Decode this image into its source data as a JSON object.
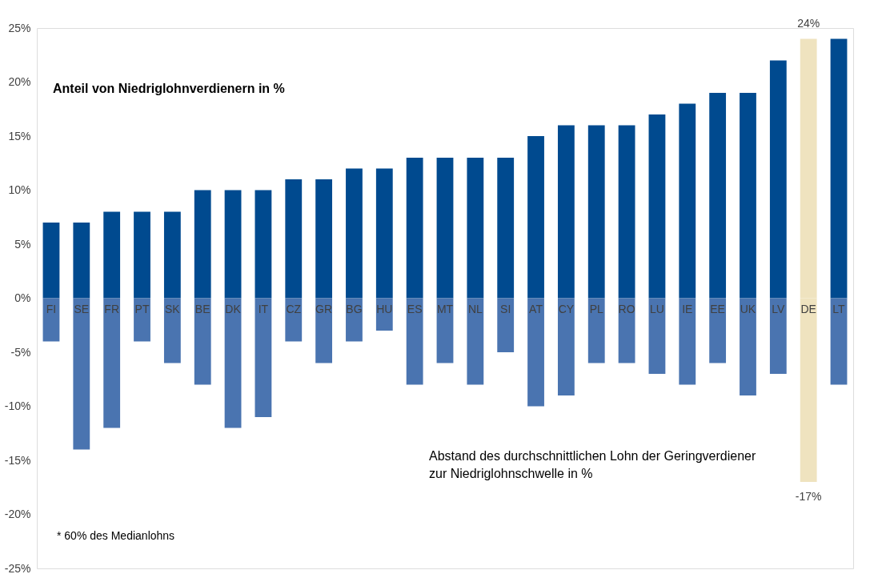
{
  "chart_data": {
    "type": "bar",
    "categories": [
      "FI",
      "SE",
      "FR",
      "PT",
      "SK",
      "BE",
      "DK",
      "IT",
      "CZ",
      "GR",
      "BG",
      "HU",
      "ES",
      "MT",
      "NL",
      "SI",
      "AT",
      "CY",
      "PL",
      "RO",
      "LU",
      "IE",
      "EE",
      "UK",
      "LV",
      "DE",
      "LT"
    ],
    "series": [
      {
        "colors": [
          "#004a8f",
          "#004a8f",
          "#004a8f",
          "#004a8f",
          "#004a8f",
          "#004a8f",
          "#004a8f",
          "#004a8f",
          "#004a8f",
          "#004a8f",
          "#004a8f",
          "#004a8f",
          "#004a8f",
          "#004a8f",
          "#004a8f",
          "#004a8f",
          "#004a8f",
          "#004a8f",
          "#004a8f",
          "#004a8f",
          "#004a8f",
          "#004a8f",
          "#004a8f",
          "#004a8f",
          "#004a8f",
          "#efe3bf",
          "#004a8f"
        ],
        "values": [
          7,
          7,
          8,
          8,
          8,
          10,
          10,
          10,
          11,
          11,
          12,
          12,
          13,
          13,
          13,
          13,
          15,
          16,
          16,
          16,
          17,
          18,
          19,
          19,
          22,
          24,
          24
        ],
        "value_labels": [
          null,
          null,
          null,
          null,
          null,
          null,
          null,
          null,
          null,
          null,
          null,
          null,
          null,
          null,
          null,
          null,
          null,
          null,
          null,
          null,
          null,
          null,
          null,
          null,
          null,
          "24%",
          null
        ]
      },
      {
        "colors": [
          "#4a74b0",
          "#4a74b0",
          "#4a74b0",
          "#4a74b0",
          "#4a74b0",
          "#4a74b0",
          "#4a74b0",
          "#4a74b0",
          "#4a74b0",
          "#4a74b0",
          "#4a74b0",
          "#4a74b0",
          "#4a74b0",
          "#4a74b0",
          "#4a74b0",
          "#4a74b0",
          "#4a74b0",
          "#4a74b0",
          "#4a74b0",
          "#4a74b0",
          "#4a74b0",
          "#4a74b0",
          "#4a74b0",
          "#4a74b0",
          "#4a74b0",
          "#efe3bf",
          "#4a74b0"
        ],
        "values": [
          -4,
          -14,
          -12,
          -4,
          -6,
          -8,
          -12,
          -11,
          -4,
          -6,
          -4,
          -3,
          -8,
          -6,
          -8,
          -5,
          -10,
          -9,
          -6,
          -6,
          -7,
          -8,
          -6,
          -9,
          -7,
          -17,
          -8
        ],
        "value_labels": [
          null,
          null,
          null,
          null,
          null,
          null,
          null,
          null,
          null,
          null,
          null,
          null,
          null,
          null,
          null,
          null,
          null,
          null,
          null,
          null,
          null,
          null,
          null,
          null,
          null,
          "-17%",
          null
        ]
      }
    ],
    "ylim": [
      -25,
      25
    ],
    "yticks": [
      {
        "value": -25,
        "label": "-25%"
      },
      {
        "value": -20,
        "label": "-20%"
      },
      {
        "value": -15,
        "label": "-15%"
      },
      {
        "value": -10,
        "label": "-10%"
      },
      {
        "value": -5,
        "label": "-5%"
      },
      {
        "value": 0,
        "label": "0%"
      },
      {
        "value": 5,
        "label": "5%"
      },
      {
        "value": 10,
        "label": "10%"
      },
      {
        "value": 15,
        "label": "15%"
      },
      {
        "value": 20,
        "label": "20%"
      },
      {
        "value": 25,
        "label": "25%"
      }
    ],
    "annotations": [
      "Anteil von Niedriglohnverdienern in %",
      "Abstand des durchschnittlichen Lohn der Geringverdiener zur Niedriglohnschwelle in %",
      "* 60% des Medianlohns"
    ],
    "grid": false,
    "stacked": true
  }
}
